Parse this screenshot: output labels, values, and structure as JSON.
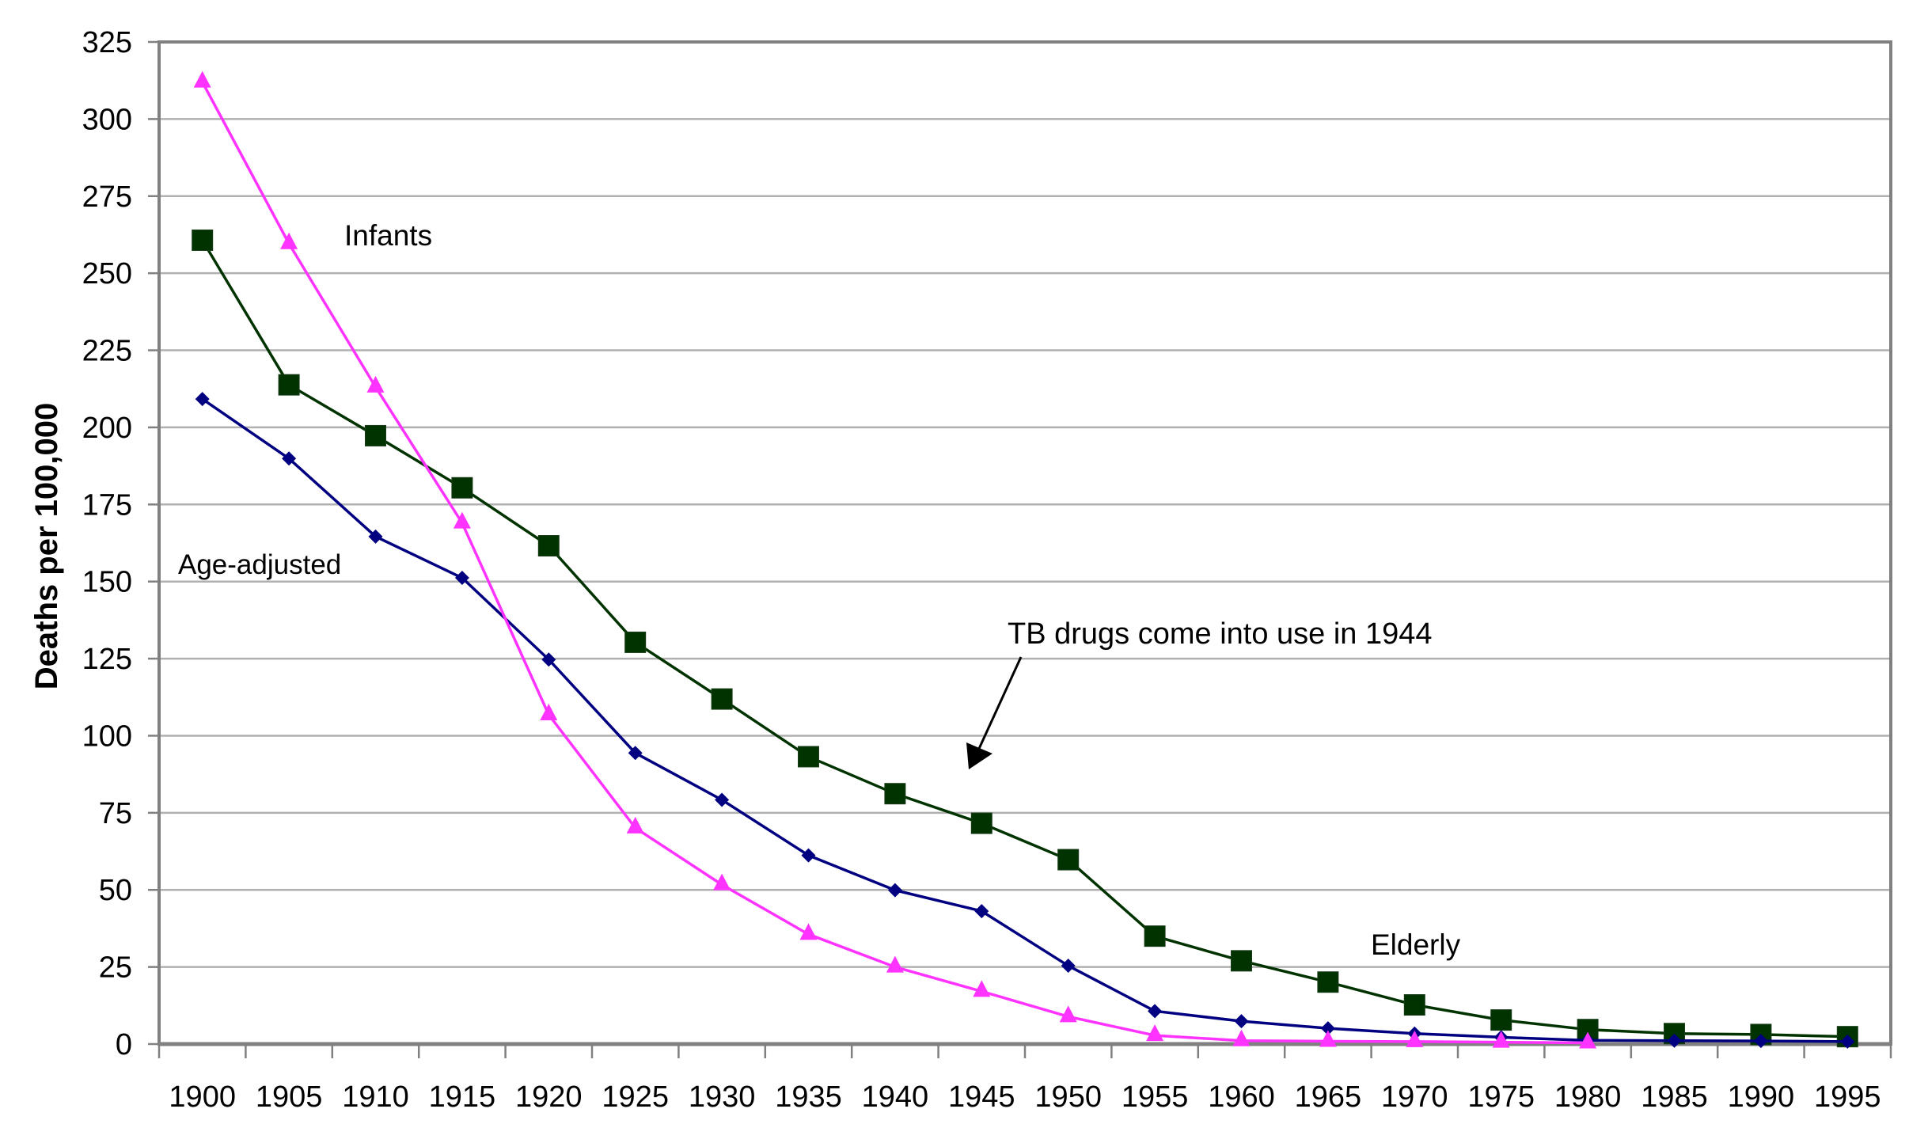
{
  "chart_data": {
    "type": "line",
    "title": "",
    "xlabel": "",
    "ylabel": "Deaths per 100,000",
    "ylim": [
      0,
      325
    ],
    "yticks": [
      0,
      25,
      50,
      75,
      100,
      125,
      150,
      175,
      200,
      225,
      250,
      275,
      300,
      325
    ],
    "grid": true,
    "legend": "none",
    "categories": [
      "1900",
      "1905",
      "1910",
      "1915",
      "1920",
      "1925",
      "1930",
      "1935",
      "1940",
      "1945",
      "1950",
      "1955",
      "1960",
      "1965",
      "1970",
      "1975",
      "1980",
      "1985",
      "1990",
      "1995"
    ],
    "series": [
      {
        "name": "Elderly",
        "marker": "square",
        "color": "#003300",
        "values": [
          260.7,
          213.8,
          197.3,
          180.4,
          161.6,
          130.3,
          111.9,
          93.2,
          81.2,
          71.6,
          59.8,
          35.0,
          27.0,
          20.1,
          12.7,
          7.8,
          4.7,
          3.4,
          3.1,
          2.4
        ]
      },
      {
        "name": "Age-adjusted",
        "marker": "diamond",
        "color": "#000080",
        "values": [
          209.2,
          189.9,
          164.6,
          151.2,
          124.7,
          94.4,
          79.2,
          61.2,
          49.9,
          43.1,
          25.4,
          10.7,
          7.4,
          5.1,
          3.4,
          2.2,
          1.2,
          1.1,
          1.0,
          0.8
        ]
      },
      {
        "name": "Infants",
        "marker": "triangle",
        "color": "#ff33ff",
        "values": [
          312.0,
          259.6,
          213.1,
          169.0,
          106.8,
          70.1,
          51.7,
          35.6,
          25.0,
          17.1,
          8.9,
          2.8,
          1.1,
          0.9,
          0.8,
          0.6,
          0.4,
          null,
          null,
          null
        ]
      }
    ],
    "series_labels": [
      {
        "text": "Infants",
        "series": "Infants"
      },
      {
        "text": "Age-adjusted",
        "series": "Age-adjusted"
      },
      {
        "text": "Elderly",
        "series": "Elderly"
      }
    ],
    "annotations": [
      {
        "text": "TB drugs come into use in 1944",
        "points_to_year": 1944
      }
    ]
  },
  "colors": {
    "gridline": "#b0b0b0",
    "plot_border": "#808080",
    "text": "#000000"
  }
}
